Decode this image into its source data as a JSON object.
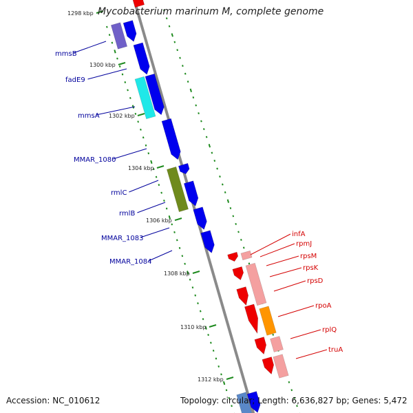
{
  "title": "Mycobacterium marinum M, complete genome",
  "footer": {
    "accession": "Accession: NC_010612",
    "summary": "Topology: circular; Length: 6,636,827 bp; Genes: 5,472"
  },
  "ticks": [
    "1298 kbp",
    "1300 kbp",
    "1302 kbp",
    "1304 kbp",
    "1306 kbp",
    "1308 kbp",
    "1310 kbp",
    "1312 kbp"
  ],
  "left_labels": [
    "mmsB",
    "fadE9",
    "mmsA",
    "MMAR_1080",
    "rmlC",
    "rmlB",
    "MMAR_1083",
    "MMAR_1084"
  ],
  "right_labels": [
    "infA",
    "rpmJ",
    "rpsM",
    "rpsK",
    "rpsD",
    "rpoA",
    "rplQ",
    "truA"
  ],
  "colors": {
    "backbone": "#8a8a8a",
    "cds": "#0000ee",
    "gc_marks": "#1e8a1e",
    "left_labels": "#00009c",
    "right_labels": "#d40000",
    "ribosomal": "#ee0000",
    "ribosomal_light": "#f4a0a0",
    "mmsB": "#7060c8",
    "mmsA": "#20e8e8",
    "rmlBC": "#6f8a1c",
    "rpoA": "#ff9500"
  }
}
